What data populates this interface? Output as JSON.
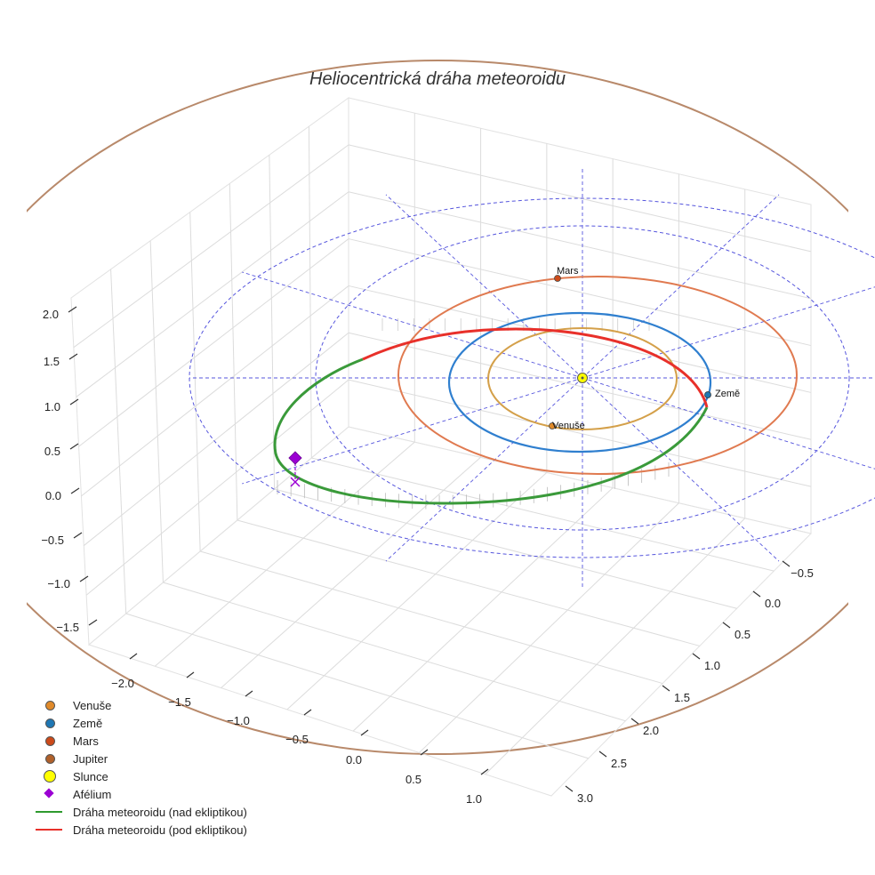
{
  "chart_data": {
    "type": "line",
    "title": "Heliocentrická dráha meteoroidu",
    "x_ticks": [
      "−2.0",
      "−1.5",
      "−1.0",
      "−0.5",
      "0.0",
      "0.5",
      "1.0"
    ],
    "y_ticks": [
      "−0.5",
      "0.0",
      "0.5",
      "1.0",
      "1.5",
      "2.0",
      "2.5",
      "3.0"
    ],
    "z_ticks": [
      "−1.5",
      "−1.0",
      "−0.5",
      "0.0",
      "0.5",
      "1.0",
      "1.5",
      "2.0"
    ],
    "orbits": [
      {
        "name": "Venuše",
        "semi_major_axis_au": 0.72,
        "color": "#d4a04a"
      },
      {
        "name": "Země",
        "semi_major_axis_au": 1.0,
        "color": "#2f7fcf"
      },
      {
        "name": "Mars",
        "semi_major_axis_au": 1.52,
        "color": "#e07a50"
      },
      {
        "name": "Jupiter",
        "semi_major_axis_au": 5.2,
        "color": "#b8896a"
      }
    ],
    "planets": [
      {
        "name": "Venuše",
        "x": -0.01,
        "y": 0.72,
        "z": 0,
        "label": "Venuše",
        "color": "#e08a2a"
      },
      {
        "name": "Země",
        "x": 0.98,
        "y": 0.2,
        "z": 0,
        "label": "Země",
        "color": "#1f77b4"
      },
      {
        "name": "Mars",
        "x": -0.2,
        "y": -1.5,
        "z": 0,
        "label": "Mars",
        "color": "#cc4a1a"
      },
      {
        "name": "Slunce",
        "x": 0,
        "y": 0,
        "z": 0,
        "color": "#ffff00"
      }
    ],
    "meteoroid": {
      "perihelion_au": 0.98,
      "aphelion_au": 2.5,
      "aphelion_point": {
        "x": -2.3,
        "y": 0.95,
        "z": 0.25
      },
      "above_color": "#3a9a3a",
      "below_color": "#e8302a"
    },
    "ecliptic_grid": {
      "radii_au": [
        2.0,
        3.0
      ],
      "color": "#5555dd"
    },
    "legend": [
      {
        "label": "Venuše",
        "symbol": "dot",
        "color": "#e08a2a"
      },
      {
        "label": "Země",
        "symbol": "dot",
        "color": "#1f77b4"
      },
      {
        "label": "Mars",
        "symbol": "dot",
        "color": "#cc4a1a"
      },
      {
        "label": "Jupiter",
        "symbol": "dot",
        "color": "#b0602a"
      },
      {
        "label": "Slunce",
        "symbol": "big-dot",
        "color": "#ffff00"
      },
      {
        "label": "Afélium",
        "symbol": "diamond",
        "color": "#9b00d3"
      },
      {
        "label": "Dráha meteoroidu (nad ekliptikou)",
        "symbol": "line",
        "color": "#2e9a2e"
      },
      {
        "label": "Dráha meteoroidu (pod ekliptikou)",
        "symbol": "line",
        "color": "#e8302a"
      }
    ]
  }
}
